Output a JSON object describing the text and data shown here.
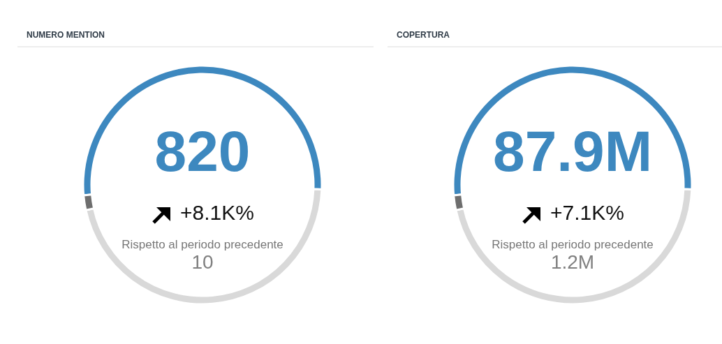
{
  "chart_data": [
    {
      "type": "donut",
      "title": "NUMERO MENTION",
      "categories": [
        null,
        null,
        null
      ],
      "values": [
        52,
        46,
        2
      ],
      "colors": [
        "#3d88bf",
        "#d9d9d9",
        "#6e6e6e"
      ],
      "annotations": [
        "820",
        "+8.1K%",
        "Rispetto al periodo precedente",
        "10"
      ]
    },
    {
      "type": "donut",
      "title": "COPERTURA",
      "categories": [
        null,
        null,
        null
      ],
      "values": [
        52,
        46,
        2
      ],
      "colors": [
        "#3d88bf",
        "#d9d9d9",
        "#6e6e6e"
      ],
      "annotations": [
        "87.9M",
        "+7.1K%",
        "Rispetto al periodo precedente",
        "1.2M"
      ]
    }
  ]
}
